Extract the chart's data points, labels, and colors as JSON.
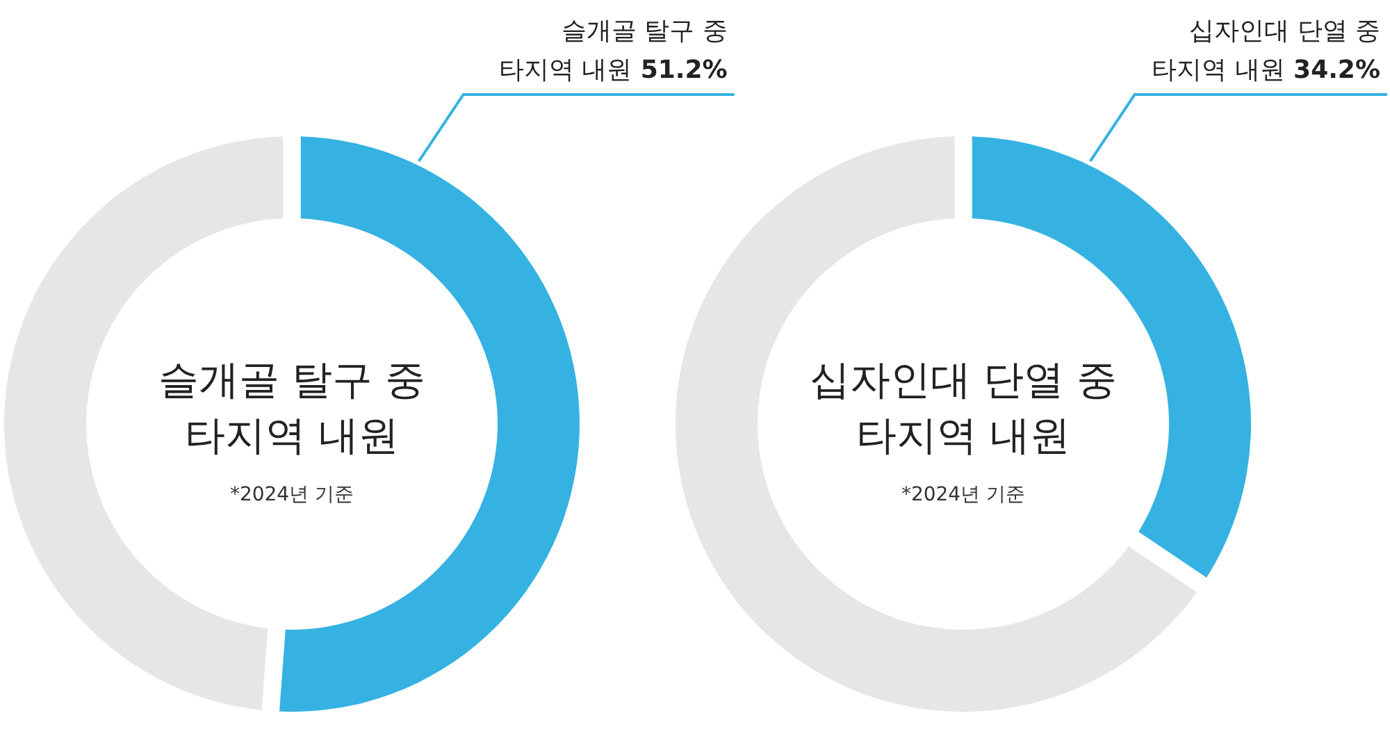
{
  "chart_data": [
    {
      "type": "donut",
      "title": "슬개골 탈구 중\n타지역 내원",
      "annotations": [
        "*2024년 기준"
      ],
      "categories": [
        "슬개골 탈구 중\n타지역 내원",
        null
      ],
      "values": [
        51.2,
        48.8
      ],
      "colors": [
        "#35b2e2",
        "#e6e6e6"
      ],
      "value_labels": [
        "51.2%",
        null
      ]
    },
    {
      "type": "donut",
      "title": "십자인대 단열 중\n타지역 내원",
      "annotations": [
        "*2024년 기준"
      ],
      "categories": [
        "십자인대 단열 중\n타지역 내원",
        null
      ],
      "values": [
        34.2,
        65.8
      ],
      "colors": [
        "#35b2e2",
        "#e6e6e6"
      ],
      "value_labels": [
        "34.2%",
        null
      ]
    }
  ]
}
